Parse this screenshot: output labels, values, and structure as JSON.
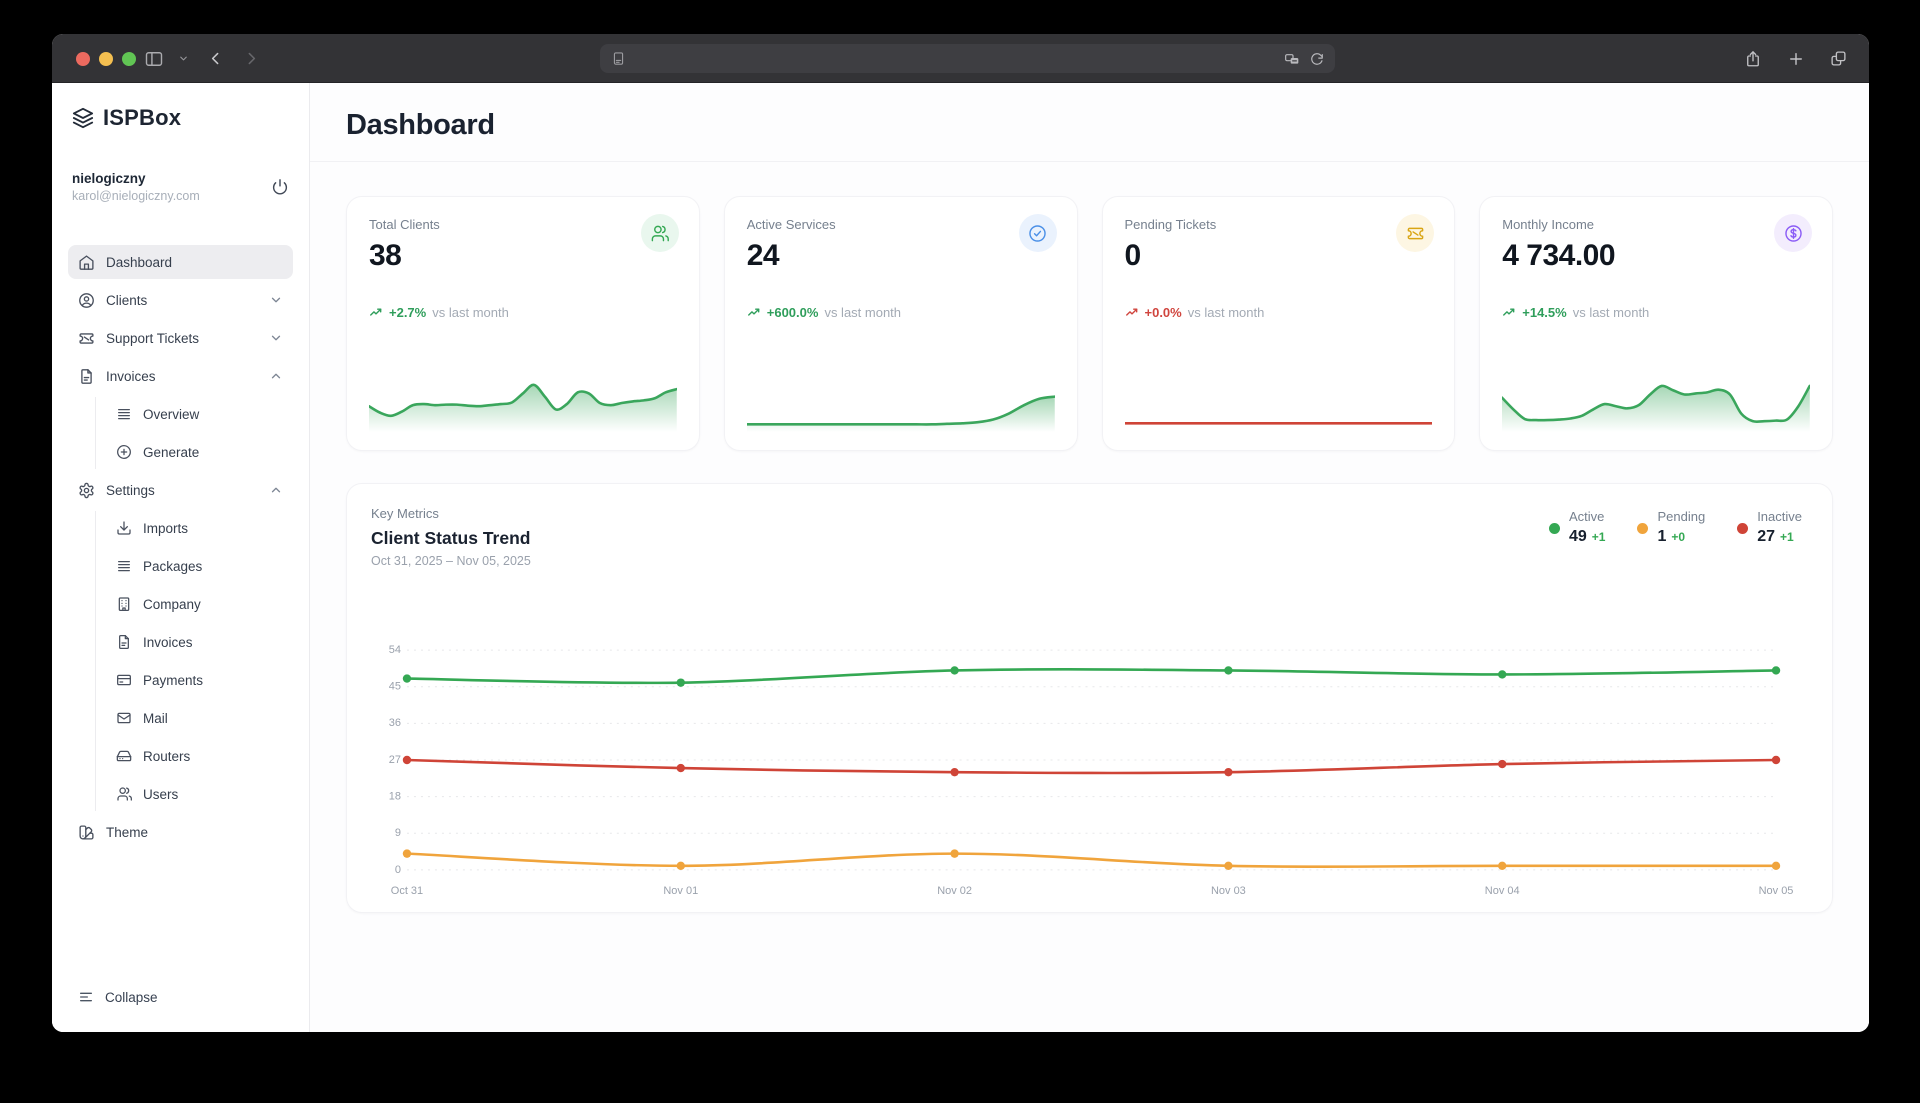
{
  "browser": {
    "traffic_lights": {
      "close": "#ec6a5f",
      "minimize": "#f4bf50",
      "zoom": "#61c554"
    },
    "address_bar": {
      "value": "",
      "left_icon": "reader-icon",
      "right_icons": [
        "privacy-icon",
        "reload-icon"
      ]
    },
    "left_icons": [
      "sidebar-toggle-icon",
      "chevron-down-icon",
      "back-icon",
      "forward-icon"
    ],
    "right_icons": [
      "share-icon",
      "new-tab-icon",
      "tabs-icon"
    ]
  },
  "sidebar": {
    "brand": "ISPBox",
    "brand_icon": "layers-icon",
    "user": {
      "name": "nielogiczny",
      "email": "karol@nielogiczny.com"
    },
    "items": [
      {
        "label": "Dashboard",
        "icon": "home-icon",
        "active": true
      },
      {
        "label": "Clients",
        "icon": "user-circle-icon",
        "chevron": "down"
      },
      {
        "label": "Support Tickets",
        "icon": "ticket-icon",
        "chevron": "down"
      },
      {
        "label": "Invoices",
        "icon": "file-icon",
        "chevron": "up",
        "children": [
          {
            "label": "Overview",
            "icon": "rows-icon"
          },
          {
            "label": "Generate",
            "icon": "plus-circle-icon"
          }
        ]
      },
      {
        "label": "Settings",
        "icon": "gear-icon",
        "chevron": "up",
        "children": [
          {
            "label": "Imports",
            "icon": "download-icon"
          },
          {
            "label": "Packages",
            "icon": "rows-icon"
          },
          {
            "label": "Company",
            "icon": "building-icon"
          },
          {
            "label": "Invoices",
            "icon": "file-icon"
          },
          {
            "label": "Payments",
            "icon": "credit-card-icon"
          },
          {
            "label": "Mail",
            "icon": "mail-icon"
          },
          {
            "label": "Routers",
            "icon": "router-icon"
          },
          {
            "label": "Users",
            "icon": "users-icon"
          }
        ]
      },
      {
        "label": "Theme",
        "icon": "theme-icon"
      }
    ],
    "collapse_label": "Collapse"
  },
  "header": {
    "title": "Dashboard"
  },
  "stat_cards": [
    {
      "label": "Total Clients",
      "value": "38",
      "badge_icon": "users-icon",
      "badge_color": "#34a853",
      "badge_bg": "#e9f7ee",
      "trend": "+2.7%",
      "trend_color": "#2f9e5b",
      "note": "vs last month",
      "spark_color": "#3aa65c",
      "spark_fill": true,
      "spark": [
        40,
        28,
        22,
        30,
        42,
        44,
        42,
        43,
        43,
        41,
        40,
        42,
        44,
        47,
        64,
        80,
        58,
        34,
        44,
        66,
        64,
        46,
        42,
        46,
        49,
        51,
        55,
        66,
        72
      ]
    },
    {
      "label": "Active Services",
      "value": "24",
      "badge_icon": "check-circle-icon",
      "badge_color": "#4a8fe7",
      "badge_bg": "#eaf2fd",
      "trend": "+600.0%",
      "trend_color": "#2f9e5b",
      "note": "vs last month",
      "spark_color": "#3aa65c",
      "spark_fill": true,
      "spark": [
        6,
        6,
        6,
        6,
        6,
        6,
        6,
        6,
        6,
        6,
        6,
        6,
        6,
        7,
        8,
        10,
        15,
        26,
        42,
        54,
        58
      ]
    },
    {
      "label": "Pending Tickets",
      "value": "0",
      "badge_icon": "ticket-icon",
      "badge_color": "#d9a514",
      "badge_bg": "#fdf6e3",
      "trend": "+0.0%",
      "trend_color": "#d0453e",
      "note": "vs last month",
      "spark_color": "#cf4437",
      "spark_fill": false,
      "spark": [
        8,
        8
      ]
    },
    {
      "label": "Monthly Income",
      "value": "4 734.00",
      "badge_icon": "dollar-icon",
      "badge_color": "#8b5cf6",
      "badge_bg": "#f3edfd",
      "trend": "+14.5%",
      "trend_color": "#2f9e5b",
      "note": "vs last month",
      "spark_color": "#3aa65c",
      "spark_fill": true,
      "spark": [
        56,
        34,
        16,
        14,
        14,
        15,
        17,
        22,
        34,
        44,
        40,
        36,
        42,
        62,
        78,
        70,
        62,
        64,
        66,
        71,
        62,
        26,
        12,
        12,
        13,
        15,
        40,
        78
      ]
    }
  ],
  "chart_card": {
    "eyebrow": "Key Metrics",
    "title": "Client Status Trend",
    "date_range": "Oct 31, 2025 – Nov 05, 2025",
    "legend": [
      {
        "label": "Active",
        "value": "49",
        "delta": "+1",
        "color": "#34a853",
        "delta_color": "#34a853"
      },
      {
        "label": "Pending",
        "value": "1",
        "delta": "+0",
        "color": "#f0a43c",
        "delta_color": "#34a853"
      },
      {
        "label": "Inactive",
        "value": "27",
        "delta": "+1",
        "color": "#cf4437",
        "delta_color": "#34a853"
      }
    ]
  },
  "chart_data": {
    "type": "line",
    "title": "Client Status Trend",
    "x": [
      "Oct 31",
      "Nov 01",
      "Nov 02",
      "Nov 03",
      "Nov 04",
      "Nov 05"
    ],
    "series": [
      {
        "name": "Active",
        "color": "#34a853",
        "values": [
          47,
          46,
          49,
          49,
          48,
          49
        ]
      },
      {
        "name": "Inactive",
        "color": "#cf4437",
        "values": [
          27,
          25,
          24,
          24,
          26,
          27
        ]
      },
      {
        "name": "Pending",
        "color": "#f0a43c",
        "values": [
          4,
          1,
          4,
          1,
          1,
          1
        ]
      }
    ],
    "yticks": [
      54,
      45,
      36,
      27,
      18,
      9,
      0
    ],
    "ylim": [
      0,
      54
    ],
    "grid": "dashed-horizontal",
    "legend_position": "top-right"
  },
  "colors": {
    "green": "#34a853",
    "red": "#cf4437",
    "orange": "#f0a43c",
    "blue": "#4a8fe7",
    "purple": "#8b5cf6"
  }
}
